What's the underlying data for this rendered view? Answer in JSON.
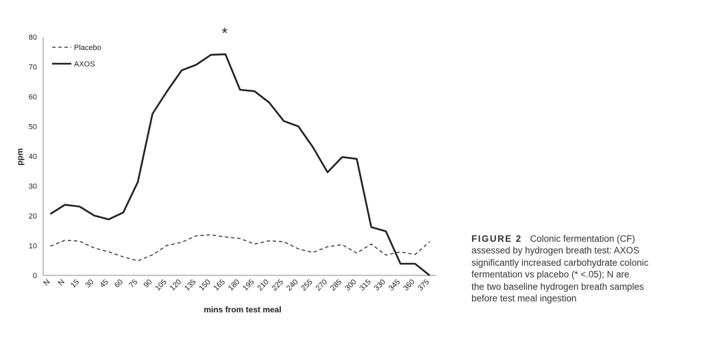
{
  "chart_data": {
    "type": "line",
    "categories": [
      "N",
      "N",
      "15",
      "30",
      "45",
      "60",
      "75",
      "90",
      "105",
      "120",
      "135",
      "150",
      "165",
      "180",
      "195",
      "210",
      "225",
      "240",
      "255",
      "270",
      "285",
      "300",
      "315",
      "330",
      "345",
      "360",
      "375"
    ],
    "series": [
      {
        "name": "Placebo",
        "style": "dashed",
        "color": "#222222",
        "values": [
          9.8,
          11.8,
          11.5,
          9.2,
          7.9,
          6.2,
          4.9,
          6.9,
          10.1,
          11.1,
          13.3,
          13.6,
          12.9,
          12.4,
          10.5,
          11.6,
          11.3,
          8.9,
          7.7,
          9.6,
          10.3,
          7.5,
          10.5,
          6.8,
          7.9,
          7.0,
          11.3
        ]
      },
      {
        "name": "AXOS",
        "style": "solid",
        "color": "#222222",
        "values": [
          20.6,
          23.7,
          23.1,
          20.1,
          18.8,
          21.1,
          31.4,
          54.2,
          61.8,
          68.8,
          70.7,
          74.0,
          74.2,
          62.3,
          61.8,
          58.0,
          51.8,
          50.0,
          43.0,
          34.6,
          39.7,
          39.1,
          16.2,
          14.8,
          3.9,
          3.9,
          0
        ]
      }
    ],
    "xlabel": "mins from test meal",
    "ylabel": "ppm",
    "ylim": [
      0,
      80
    ],
    "yticks": [
      0,
      10,
      20,
      30,
      40,
      50,
      60,
      70,
      80
    ],
    "legend_position": "top-left",
    "annotation": {
      "text": "*",
      "category_index": 12
    },
    "grid": false
  },
  "caption": {
    "label": "FIGURE 2",
    "lines": [
      "Colonic fermentation (CF)",
      "assessed by hydrogen breath test: AXOS",
      "significantly increased carbohydrate colonic",
      "fermentation vs placebo (* <.05); N are",
      "the two baseline hydrogen breath samples",
      "before test meal ingestion"
    ]
  }
}
